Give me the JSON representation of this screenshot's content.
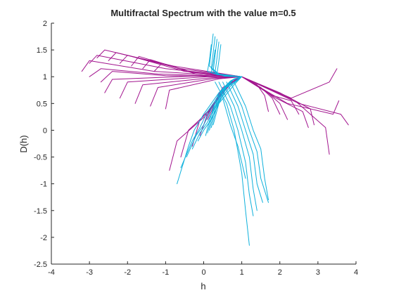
{
  "chart_data": {
    "type": "line",
    "title": "Multifractal Spectrum with the value m=0.5",
    "xlabel": "h",
    "ylabel": "D(h)",
    "xlim": [
      -4,
      4
    ],
    "ylim": [
      -2.5,
      2
    ],
    "xticks": [
      -4,
      -3,
      -2,
      -1,
      0,
      1,
      2,
      3,
      4
    ],
    "yticks": [
      -2.5,
      -2,
      -1.5,
      -1,
      -0.5,
      0,
      0.5,
      1,
      1.5,
      2
    ],
    "xtick_labels": [
      "-4",
      "-3",
      "-2",
      "-1",
      "0",
      "1",
      "2",
      "3",
      "4"
    ],
    "ytick_labels": [
      "-2.5",
      "-2",
      "-1.5",
      "-1",
      "-0.5",
      "0",
      "0.5",
      "1",
      "1.5",
      "2"
    ],
    "grid": false,
    "box": false,
    "series": [
      {
        "color": "#A2148E",
        "curves": [
          {
            "x": [
              -3.2,
              -3.0,
              -1.3,
              1.0
            ],
            "y": [
              1.1,
              1.3,
              1.1,
              1.0
            ]
          },
          {
            "x": [
              -3.0,
              -2.8,
              -1.0,
              1.0
            ],
            "y": [
              1.25,
              1.4,
              1.15,
              1.0
            ]
          },
          {
            "x": [
              -2.8,
              -2.6,
              -0.8,
              1.0
            ],
            "y": [
              1.35,
              1.5,
              1.2,
              1.0
            ]
          },
          {
            "x": [
              -2.5,
              -2.3,
              -0.6,
              1.0
            ],
            "y": [
              1.3,
              1.45,
              1.15,
              1.0
            ]
          },
          {
            "x": [
              -2.2,
              -2.0,
              -0.5,
              1.0
            ],
            "y": [
              1.25,
              1.4,
              1.1,
              1.0
            ]
          },
          {
            "x": [
              -1.9,
              -1.7,
              -0.4,
              1.0
            ],
            "y": [
              1.2,
              1.38,
              1.1,
              1.0
            ]
          },
          {
            "x": [
              -1.6,
              -1.4,
              -0.3,
              1.0
            ],
            "y": [
              1.15,
              1.32,
              1.08,
              1.0
            ]
          },
          {
            "x": [
              -1.3,
              -1.1,
              -0.2,
              1.0
            ],
            "y": [
              1.1,
              1.25,
              1.05,
              1.0
            ]
          },
          {
            "x": [
              -3.0,
              -2.7,
              -1.2,
              1.0
            ],
            "y": [
              1.0,
              1.15,
              1.05,
              1.0
            ]
          },
          {
            "x": [
              -2.7,
              -2.4,
              -1.0,
              1.0
            ],
            "y": [
              0.9,
              1.1,
              1.02,
              1.0
            ]
          },
          {
            "x": [
              -2.6,
              -2.4,
              0.0,
              1.0
            ],
            "y": [
              0.7,
              0.95,
              1.02,
              1.0
            ]
          },
          {
            "x": [
              -2.2,
              -2.0,
              0.1,
              1.0
            ],
            "y": [
              0.6,
              0.9,
              1.0,
              1.0
            ]
          },
          {
            "x": [
              -1.8,
              -1.6,
              0.2,
              1.0
            ],
            "y": [
              0.5,
              0.85,
              0.98,
              1.0
            ]
          },
          {
            "x": [
              -1.4,
              -1.2,
              0.3,
              1.0
            ],
            "y": [
              0.45,
              0.8,
              0.97,
              1.0
            ]
          },
          {
            "x": [
              -1.0,
              -0.9,
              0.4,
              1.0
            ],
            "y": [
              0.4,
              0.75,
              0.96,
              1.0
            ]
          },
          {
            "x": [
              -0.9,
              -0.7,
              0.1,
              0.5,
              1.0
            ],
            "y": [
              -0.75,
              -0.2,
              0.3,
              0.8,
              1.0
            ]
          },
          {
            "x": [
              -0.6,
              -0.4,
              0.2,
              0.6,
              1.0
            ],
            "y": [
              -0.5,
              0.0,
              0.4,
              0.85,
              1.0
            ]
          },
          {
            "x": [
              -0.3,
              -0.1,
              0.3,
              0.7,
              1.0
            ],
            "y": [
              -0.3,
              0.2,
              0.5,
              0.88,
              1.0
            ]
          },
          {
            "x": [
              -0.1,
              0.1,
              0.4,
              0.75,
              1.0
            ],
            "y": [
              -0.1,
              0.3,
              0.6,
              0.9,
              1.0
            ]
          },
          {
            "x": [
              0.0,
              0.2,
              0.45,
              0.8,
              1.0
            ],
            "y": [
              0.1,
              0.4,
              0.7,
              0.93,
              1.0
            ]
          },
          {
            "x": [
              0.1,
              0.3,
              0.55,
              0.85,
              1.0
            ],
            "y": [
              0.2,
              0.5,
              0.78,
              0.95,
              1.0
            ]
          },
          {
            "x": [
              1.0,
              2.5,
              3.6,
              3.8
            ],
            "y": [
              1.0,
              0.5,
              0.3,
              0.1
            ]
          },
          {
            "x": [
              1.0,
              2.4,
              3.2,
              3.3
            ],
            "y": [
              1.0,
              0.55,
              0.05,
              -0.45
            ]
          },
          {
            "x": [
              1.0,
              2.3,
              3.3,
              3.5
            ],
            "y": [
              1.0,
              0.6,
              0.9,
              1.15
            ]
          },
          {
            "x": [
              1.0,
              2.2,
              3.4,
              3.55
            ],
            "y": [
              1.0,
              0.5,
              0.3,
              0.55
            ]
          },
          {
            "x": [
              1.0,
              2.0,
              2.8,
              2.9
            ],
            "y": [
              1.0,
              0.7,
              0.4,
              0.1
            ]
          },
          {
            "x": [
              1.0,
              1.9,
              2.6,
              2.75
            ],
            "y": [
              1.0,
              0.6,
              0.35,
              0.05
            ]
          },
          {
            "x": [
              1.0,
              1.8,
              2.3,
              2.5
            ],
            "y": [
              1.0,
              0.65,
              0.55,
              0.3
            ]
          },
          {
            "x": [
              1.0,
              1.6,
              2.0,
              2.2
            ],
            "y": [
              1.0,
              0.75,
              0.5,
              0.2
            ]
          },
          {
            "x": [
              1.0,
              1.5,
              1.8,
              2.0
            ],
            "y": [
              1.0,
              0.8,
              0.6,
              0.3
            ]
          },
          {
            "x": [
              1.0,
              1.4,
              1.6,
              1.7
            ],
            "y": [
              1.0,
              0.85,
              0.65,
              0.35
            ]
          }
        ]
      },
      {
        "color": "#0FB1DC",
        "curves": [
          {
            "x": [
              0.25,
              0.2,
              0.15,
              0.4,
              1.0
            ],
            "y": [
              1.8,
              1.5,
              1.2,
              1.05,
              1.0
            ]
          },
          {
            "x": [
              0.3,
              0.25,
              0.2,
              0.45,
              1.0
            ],
            "y": [
              1.75,
              1.45,
              1.15,
              1.03,
              1.0
            ]
          },
          {
            "x": [
              0.35,
              0.3,
              0.25,
              0.5,
              1.0
            ],
            "y": [
              1.7,
              1.4,
              1.1,
              1.02,
              1.0
            ]
          },
          {
            "x": [
              0.4,
              0.35,
              0.3,
              0.55,
              1.0
            ],
            "y": [
              1.65,
              1.35,
              1.08,
              1.01,
              1.0
            ]
          },
          {
            "x": [
              0.45,
              0.4,
              0.35,
              0.6,
              1.0
            ],
            "y": [
              1.6,
              1.3,
              1.05,
              1.01,
              1.0
            ]
          },
          {
            "x": [
              0.2,
              0.15,
              0.1,
              0.35,
              1.0
            ],
            "y": [
              1.6,
              1.3,
              1.1,
              1.04,
              1.0
            ]
          },
          {
            "x": [
              0.3,
              0.25,
              0.2,
              0.45,
              1.0
            ],
            "y": [
              1.5,
              1.25,
              1.08,
              1.03,
              1.0
            ]
          },
          {
            "x": [
              0.05,
              0.2,
              0.4,
              0.7,
              1.0
            ],
            "y": [
              -0.1,
              0.3,
              0.7,
              0.92,
              1.0
            ]
          },
          {
            "x": [
              0.1,
              0.25,
              0.45,
              0.72,
              1.0
            ],
            "y": [
              -0.05,
              0.35,
              0.72,
              0.93,
              1.0
            ]
          },
          {
            "x": [
              0.15,
              0.3,
              0.5,
              0.75,
              1.0
            ],
            "y": [
              0.0,
              0.4,
              0.75,
              0.94,
              1.0
            ]
          },
          {
            "x": [
              0.2,
              0.35,
              0.55,
              0.78,
              1.0
            ],
            "y": [
              0.05,
              0.45,
              0.78,
              0.95,
              1.0
            ]
          },
          {
            "x": [
              0.25,
              0.4,
              0.6,
              0.8,
              1.0
            ],
            "y": [
              0.1,
              0.5,
              0.8,
              0.96,
              1.0
            ]
          },
          {
            "x": [
              1.0,
              0.4,
              0.0,
              -0.25,
              -0.4,
              -0.7
            ],
            "y": [
              1.0,
              0.7,
              0.3,
              0.0,
              -0.3,
              -1.0
            ]
          },
          {
            "x": [
              1.0,
              0.5,
              0.1,
              -0.1,
              -0.3,
              -0.6
            ],
            "y": [
              1.0,
              0.75,
              0.35,
              0.05,
              -0.2,
              -0.7
            ]
          },
          {
            "x": [
              1.0,
              0.6,
              0.2,
              0.0,
              -0.2,
              -0.45
            ],
            "y": [
              1.0,
              0.8,
              0.4,
              0.1,
              -0.1,
              -0.5
            ]
          },
          {
            "x": [
              1.0,
              0.7,
              0.3,
              0.1,
              -0.1,
              -0.3
            ],
            "y": [
              1.0,
              0.82,
              0.45,
              0.15,
              -0.05,
              -0.35
            ]
          },
          {
            "x": [
              1.0,
              0.8,
              0.4,
              0.2,
              0.0,
              -0.15
            ],
            "y": [
              1.0,
              0.85,
              0.5,
              0.2,
              0.0,
              -0.2
            ]
          },
          {
            "x": [
              0.3,
              0.6,
              0.8,
              1.0,
              1.1,
              1.2
            ],
            "y": [
              0.9,
              0.5,
              0.0,
              -0.8,
              -1.5,
              -2.15
            ]
          },
          {
            "x": [
              0.4,
              0.7,
              0.9,
              1.1,
              1.2,
              1.3
            ],
            "y": [
              0.9,
              0.45,
              0.0,
              -0.6,
              -1.2,
              -1.6
            ]
          },
          {
            "x": [
              0.5,
              0.8,
              1.0,
              1.2,
              1.3,
              1.4
            ],
            "y": [
              0.9,
              0.45,
              0.0,
              -0.5,
              -1.1,
              -1.5
            ]
          },
          {
            "x": [
              0.6,
              0.9,
              1.1,
              1.3,
              1.4,
              1.55
            ],
            "y": [
              0.9,
              0.45,
              0.0,
              -0.45,
              -1.0,
              -1.35
            ]
          },
          {
            "x": [
              0.7,
              1.0,
              1.2,
              1.4,
              1.5,
              1.7
            ],
            "y": [
              0.9,
              0.45,
              0.0,
              -0.4,
              -0.9,
              -1.35
            ]
          },
          {
            "x": [
              0.8,
              1.1,
              1.3,
              1.5,
              1.6,
              1.7
            ],
            "y": [
              0.9,
              0.45,
              0.0,
              -0.35,
              -0.9,
              -1.3
            ]
          },
          {
            "x": [
              0.5,
              0.7,
              0.9,
              1.0,
              1.1
            ],
            "y": [
              0.6,
              0.1,
              -0.3,
              -0.6,
              -0.9
            ]
          }
        ]
      }
    ]
  }
}
